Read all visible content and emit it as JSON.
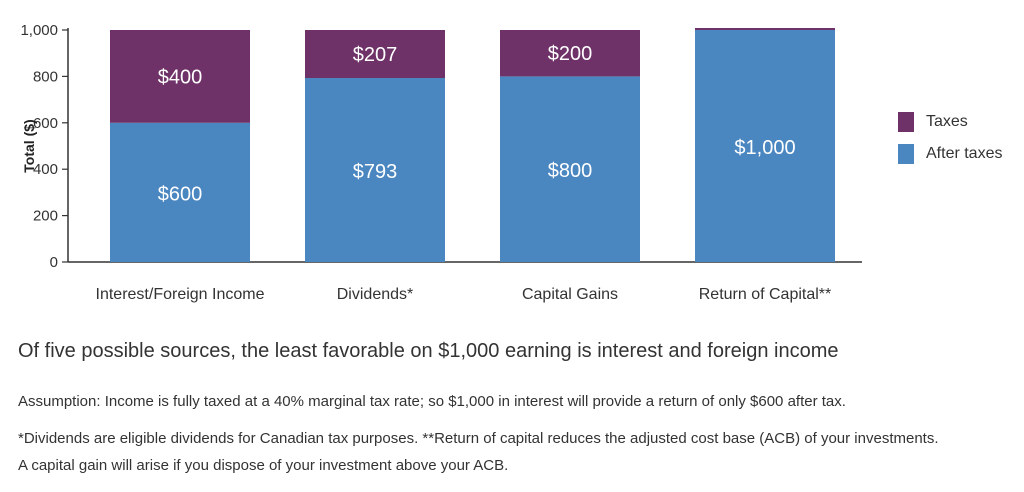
{
  "chart_data": {
    "type": "bar",
    "stacked": true,
    "categories": [
      "Interest/Foreign Income",
      "Dividends*",
      "Capital Gains",
      "Return of Capital**"
    ],
    "series": [
      {
        "name": "After taxes",
        "values": [
          600,
          793,
          800,
          1000
        ],
        "labels": [
          "$600",
          "$793",
          "$800",
          "$1,000"
        ],
        "color": "#4a86c0"
      },
      {
        "name": "Taxes",
        "values": [
          400,
          207,
          200,
          0
        ],
        "labels": [
          "$400",
          "$207",
          "$200",
          ""
        ],
        "color": "#6e3268"
      }
    ],
    "ylabel": "Total ($)",
    "ylim": [
      0,
      1000
    ],
    "yticks": [
      0,
      200,
      400,
      600,
      800,
      1000
    ],
    "ytick_labels": [
      "0",
      "200",
      "400",
      "600",
      "800",
      "1,000"
    ],
    "legend": {
      "position": "right",
      "order": [
        "Taxes",
        "After taxes"
      ]
    },
    "grid": false
  },
  "captions": {
    "main": "Of five possible sources, the least favorable on $1,000 earning is interest and foreign income",
    "assumption": "Assumption: Income is fully taxed at a 40% marginal tax rate; so $1,000 in interest will provide a return of only $600 after tax.",
    "note1": "*Dividends are eligible dividends for Canadian tax purposes. **Return of capital reduces the adjusted cost base (ACB) of your investments.",
    "note2": "A capital gain will arise if you dispose of your investment above your ACB."
  }
}
